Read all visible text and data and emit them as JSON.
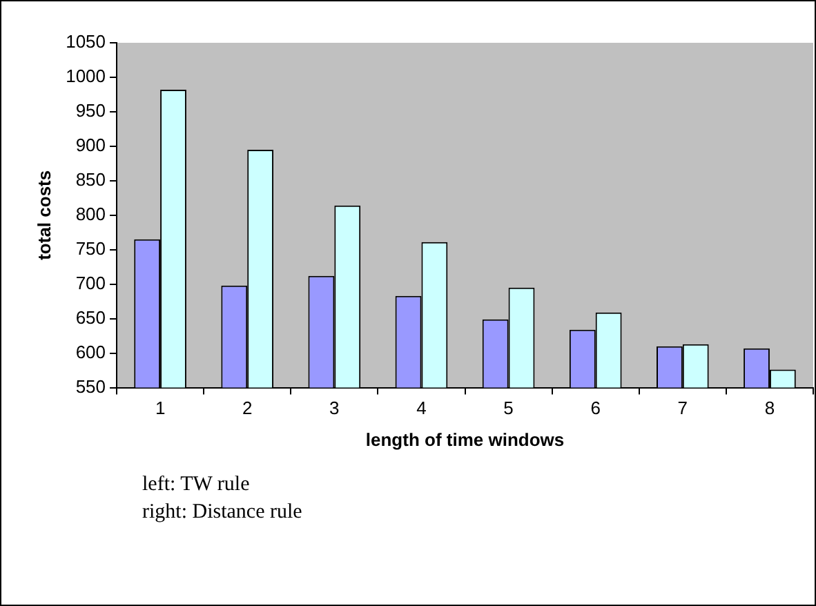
{
  "chart_data": {
    "type": "bar",
    "xlabel": "length of time windows",
    "ylabel": "total costs",
    "categories": [
      "1",
      "2",
      "3",
      "4",
      "5",
      "6",
      "7",
      "8"
    ],
    "series": [
      {
        "color": "#9999ff",
        "values": [
          765,
          698,
          712,
          683,
          649,
          634,
          610,
          607
        ]
      },
      {
        "color": "#ccffff",
        "values": [
          982,
          895,
          814,
          761,
          695,
          659,
          613,
          576
        ]
      }
    ],
    "ylim": [
      550,
      1050
    ],
    "yticks": [
      550,
      600,
      650,
      700,
      750,
      800,
      850,
      900,
      950,
      1000,
      1050
    ],
    "grid": false,
    "legend": false,
    "annotations": [
      "left: TW rule",
      "right: Distance rule"
    ]
  }
}
